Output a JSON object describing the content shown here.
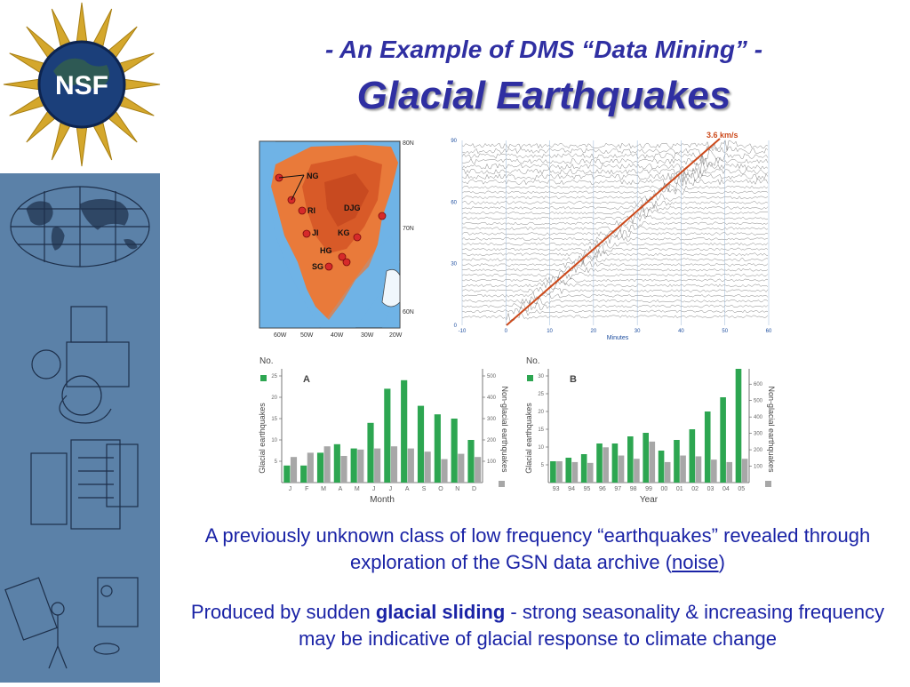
{
  "slide": {
    "title_line1": "- An Example of DMS “Data Mining” -",
    "title_line2": "Glacial Earthquakes",
    "logo_text": "NSF",
    "caption1_pre": "A previously unknown class of low frequency “earthquakes” revealed through exploration of the GSN data archive (",
    "caption1_link": "noise",
    "caption1_post": ")",
    "caption2_pre": "Produced by sudden ",
    "caption2_bold": "glacial sliding",
    "caption2_post": "  -  strong seasonality & increasing frequency may be indicative of glacial response to climate change"
  },
  "map": {
    "labels": [
      "NG",
      "DJG",
      "RI",
      "KG",
      "JI",
      "HG",
      "SG"
    ],
    "lat_labels": [
      "80N",
      "70N",
      "60N"
    ],
    "lon_labels": [
      "60W",
      "50W",
      "40W",
      "30W",
      "20W"
    ]
  },
  "seismo": {
    "speed_label": "3.6 km/s",
    "xlabel": "Minutes",
    "xticks": [
      "-10",
      "0",
      "10",
      "20",
      "30",
      "40",
      "50",
      "60"
    ],
    "yticks": [
      "0",
      "30",
      "60",
      "90"
    ],
    "colors": {
      "trace": "#333333",
      "line": "#cc4a1c"
    }
  },
  "chart_data": [
    {
      "type": "bar",
      "panel_label": "A",
      "title": "No.",
      "xlabel": "Month",
      "ylabel": "Glacial earthquakes",
      "y2label": "Non-glacial earthquakes",
      "categories": [
        "J",
        "F",
        "M",
        "A",
        "M",
        "J",
        "J",
        "A",
        "S",
        "O",
        "N",
        "D"
      ],
      "ylim": [
        0,
        25
      ],
      "yticks": [
        5,
        10,
        15,
        20,
        25
      ],
      "y2lim": [
        0,
        500
      ],
      "y2ticks": [
        100,
        200,
        300,
        400,
        500
      ],
      "series": [
        {
          "axis": "left",
          "color": "#2da651",
          "values": [
            4,
            4,
            7,
            9,
            8,
            14,
            22,
            24,
            18,
            16,
            15,
            10
          ]
        },
        {
          "axis": "right",
          "color": "#a7a7a7",
          "values": [
            120,
            140,
            170,
            125,
            155,
            160,
            170,
            160,
            145,
            110,
            135,
            120
          ]
        }
      ]
    },
    {
      "type": "bar",
      "panel_label": "B",
      "title": "No.",
      "xlabel": "Year",
      "ylabel": "Glacial earthquakes",
      "y2label": "Non-glacial earthquakes",
      "categories": [
        "93",
        "94",
        "95",
        "96",
        "97",
        "98",
        "99",
        "00",
        "01",
        "02",
        "03",
        "04",
        "05"
      ],
      "ylim": [
        0,
        30
      ],
      "yticks": [
        5,
        10,
        15,
        20,
        25,
        30
      ],
      "y2lim": [
        0,
        650
      ],
      "y2ticks": [
        100,
        200,
        300,
        400,
        500,
        600
      ],
      "series": [
        {
          "axis": "left",
          "color": "#2da651",
          "values": [
            6,
            7,
            8,
            11,
            11,
            13,
            14,
            9,
            12,
            15,
            20,
            24,
            32
          ]
        },
        {
          "axis": "right",
          "color": "#a7a7a7",
          "values": [
            130,
            125,
            120,
            215,
            165,
            145,
            250,
            125,
            165,
            160,
            140,
            125,
            145
          ]
        }
      ]
    }
  ]
}
